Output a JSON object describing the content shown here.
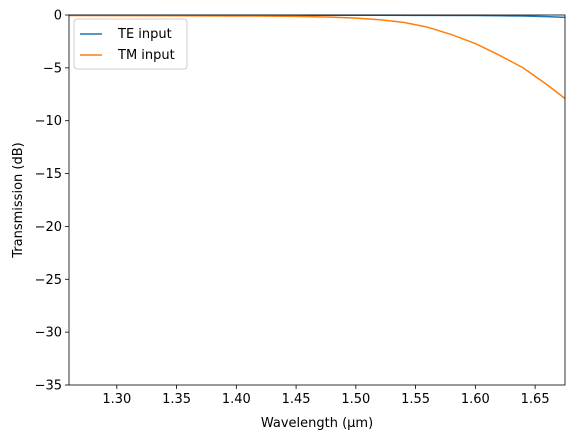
{
  "chart_data": {
    "type": "line",
    "xlabel": "Wavelength (μm)",
    "ylabel": "Transmission (dB)",
    "xlim": [
      1.26,
      1.675
    ],
    "ylim": [
      -35,
      0
    ],
    "xticks": [
      "1.30",
      "1.35",
      "1.40",
      "1.45",
      "1.50",
      "1.55",
      "1.60",
      "1.65"
    ],
    "yticks": [
      "0",
      "−5",
      "−10",
      "−15",
      "−20",
      "−25",
      "−30",
      "−35"
    ],
    "grid": false,
    "legend_position": "top-left",
    "series": [
      {
        "name": "TE input",
        "color": "#1f77b4",
        "x": [
          1.26,
          1.3,
          1.35,
          1.4,
          1.45,
          1.5,
          1.55,
          1.6,
          1.62,
          1.64,
          1.66,
          1.675
        ],
        "y": [
          -0.02,
          -0.02,
          -0.02,
          -0.02,
          -0.02,
          -0.02,
          -0.03,
          -0.05,
          -0.07,
          -0.1,
          -0.15,
          -0.22
        ]
      },
      {
        "name": "TM input",
        "color": "#ff7f0e",
        "x": [
          1.26,
          1.3,
          1.35,
          1.4,
          1.43,
          1.45,
          1.48,
          1.5,
          1.52,
          1.54,
          1.56,
          1.58,
          1.6,
          1.62,
          1.64,
          1.66,
          1.675
        ],
        "y": [
          -0.05,
          -0.06,
          -0.07,
          -0.09,
          -0.11,
          -0.13,
          -0.2,
          -0.3,
          -0.45,
          -0.7,
          -1.15,
          -1.85,
          -2.7,
          -3.8,
          -5.0,
          -6.6,
          -7.9
        ]
      }
    ]
  }
}
